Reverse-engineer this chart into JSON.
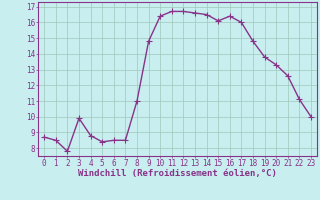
{
  "x": [
    0,
    1,
    2,
    3,
    4,
    5,
    6,
    7,
    8,
    9,
    10,
    11,
    12,
    13,
    14,
    15,
    16,
    17,
    18,
    19,
    20,
    21,
    22,
    23
  ],
  "y": [
    8.7,
    8.5,
    7.8,
    9.9,
    8.8,
    8.4,
    8.5,
    8.5,
    11.0,
    14.8,
    16.4,
    16.7,
    16.7,
    16.6,
    16.5,
    16.1,
    16.4,
    16.0,
    14.8,
    13.8,
    13.3,
    12.6,
    11.1,
    10.0
  ],
  "line_color": "#883388",
  "marker": "+",
  "marker_size": 4,
  "line_width": 1.0,
  "xlabel": "Windchill (Refroidissement éolien,°C)",
  "xlabel_fontsize": 6.5,
  "ylabel_ticks": [
    8,
    9,
    10,
    11,
    12,
    13,
    14,
    15,
    16,
    17
  ],
  "xtick_labels": [
    "0",
    "1",
    "2",
    "3",
    "4",
    "5",
    "6",
    "7",
    "8",
    "9",
    "10",
    "11",
    "12",
    "13",
    "14",
    "15",
    "16",
    "17",
    "18",
    "19",
    "20",
    "21",
    "22",
    "23"
  ],
  "xlim": [
    -0.5,
    23.5
  ],
  "ylim": [
    7.5,
    17.3
  ],
  "bg_color": "#c8eef0",
  "grid_color": "#a0c8b8",
  "tick_color": "#883388",
  "tick_fontsize": 5.5
}
